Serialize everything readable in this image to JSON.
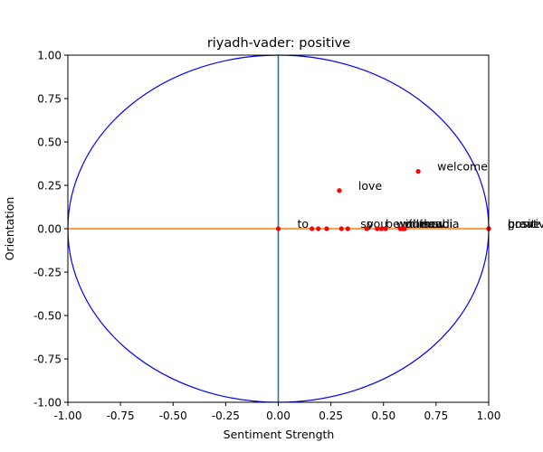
{
  "chart_data": {
    "type": "scatter",
    "title": "riyadh-vader: positive",
    "xlabel": "Sentiment Strength",
    "ylabel": "Orientation",
    "xlim": [
      -1.0,
      1.0
    ],
    "ylim": [
      -1.0,
      1.0
    ],
    "xticks": [
      "-1.00",
      "-0.75",
      "-0.50",
      "-0.25",
      "0.00",
      "0.25",
      "0.50",
      "0.75",
      "1.00"
    ],
    "yticks": [
      "-1.00",
      "-0.75",
      "-0.50",
      "-0.25",
      "0.00",
      "0.25",
      "0.50",
      "0.75",
      "1.00"
    ],
    "grid": false,
    "legend": "none",
    "unit_circle": true,
    "points": [
      {
        "x": 0.0,
        "y": 0.0,
        "label": "to"
      },
      {
        "x": 0.16,
        "y": 0.0,
        "label": ""
      },
      {
        "x": 0.19,
        "y": 0.0,
        "label": ""
      },
      {
        "x": 0.23,
        "y": 0.0,
        "label": ""
      },
      {
        "x": 0.29,
        "y": 0.22,
        "label": "love"
      },
      {
        "x": 0.3,
        "y": 0.0,
        "label": "so"
      },
      {
        "x": 0.33,
        "y": 0.0,
        "label": "you"
      },
      {
        "x": 0.42,
        "y": 0.0,
        "label": "be"
      },
      {
        "x": 0.47,
        "y": 0.0,
        "label": "with"
      },
      {
        "x": 0.49,
        "y": 0.0,
        "label": "will"
      },
      {
        "x": 0.51,
        "y": 0.0,
        "label": "our"
      },
      {
        "x": 0.58,
        "y": 0.0,
        "label": "the"
      },
      {
        "x": 0.585,
        "y": 0.0,
        "label": "in"
      },
      {
        "x": 0.59,
        "y": 0.0,
        "label": "new"
      },
      {
        "x": 0.595,
        "y": 0.0,
        "label": "saudi"
      },
      {
        "x": 0.6,
        "y": 0.0,
        "label": "arabia"
      },
      {
        "x": 0.665,
        "y": 0.33,
        "label": "welcome"
      },
      {
        "x": 1.0,
        "y": 0.0,
        "label": "positive"
      },
      {
        "x": 1.0,
        "y": 0.0,
        "label": "brave"
      },
      {
        "x": 1.0,
        "y": 0.0,
        "label": "great"
      }
    ],
    "colors": {
      "points": "#ff0000",
      "circle": "#0000ff",
      "horizontal_line": "#ff7f0e",
      "vertical_line": "#1f77b4",
      "axes": "#000000"
    }
  }
}
